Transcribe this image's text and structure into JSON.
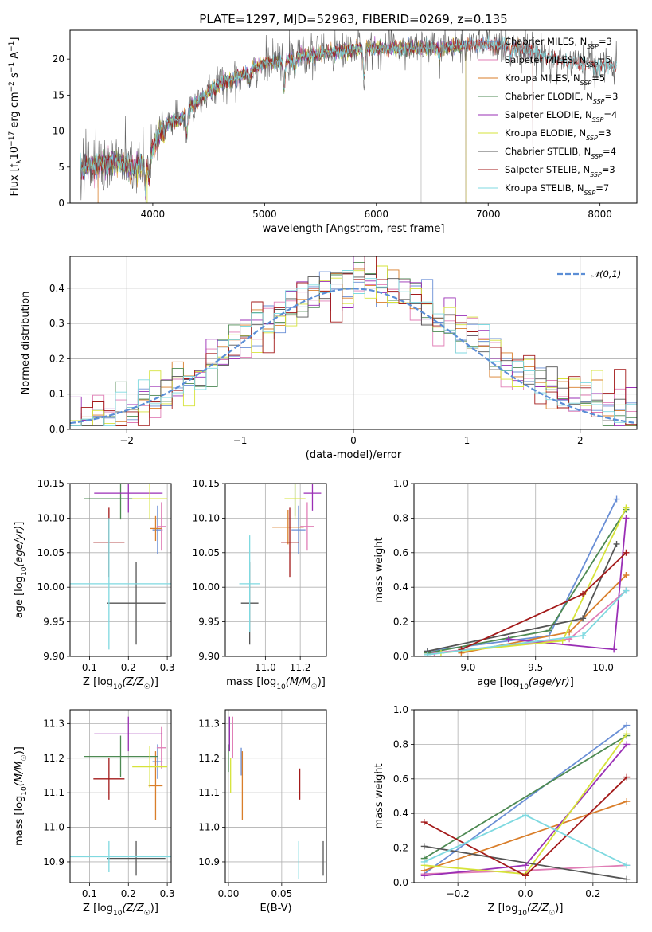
{
  "figure": {
    "title": "PLATE=1297, MJD=52963, FIBERID=0269, z=0.135"
  },
  "chart_data": [
    {
      "id": "spectrum",
      "type": "line",
      "xlabel": "wavelength [Angstrom, rest frame]",
      "ylabel": "Flux [f_λ 10^-17 erg cm^-2 s^-1 A^-1]",
      "xlim": [
        3260,
        8330
      ],
      "ylim": [
        0,
        24
      ],
      "xticks": [
        4000,
        5000,
        6000,
        7000,
        8000
      ],
      "yticks": [
        0,
        5,
        10,
        15,
        20
      ],
      "legend_position": "top-right",
      "continuum_nodes": [
        [
          3350,
          4.6
        ],
        [
          3500,
          5.3
        ],
        [
          3700,
          5.8
        ],
        [
          3800,
          4.8
        ],
        [
          3950,
          5.5
        ],
        [
          4000,
          7.5
        ],
        [
          4100,
          11.0
        ],
        [
          4250,
          11.6
        ],
        [
          4350,
          13.5
        ],
        [
          4600,
          16.5
        ],
        [
          4850,
          18.2
        ],
        [
          5000,
          19.5
        ],
        [
          5150,
          19.7
        ],
        [
          5300,
          20.3
        ],
        [
          5600,
          21.0
        ],
        [
          5900,
          21.5
        ],
        [
          6200,
          21.5
        ],
        [
          6500,
          21.6
        ],
        [
          6900,
          22.0
        ],
        [
          7200,
          21.9
        ],
        [
          7600,
          20.0
        ],
        [
          7900,
          19.2
        ],
        [
          8150,
          19.0
        ]
      ],
      "absorption_lines": [
        [
          3934,
          3.5
        ],
        [
          3968,
          3.0
        ],
        [
          4102,
          2.0
        ],
        [
          4304,
          3.0
        ],
        [
          4861,
          1.5
        ],
        [
          5175,
          4.0
        ],
        [
          5270,
          1.5
        ],
        [
          5890,
          4.0
        ],
        [
          6563,
          1.5
        ],
        [
          7200,
          1.5
        ]
      ],
      "series": [
        {
          "name": "Chabrier MILES, N_SSP=3",
          "color": "#6a8fd6",
          "xmax": 7400
        },
        {
          "name": "Salpeter MILES, N_SSP=5",
          "color": "#e07eb6",
          "xmax": 7400
        },
        {
          "name": "Kroupa MILES, N_SSP=5",
          "color": "#d97e2a",
          "xmax": 7400
        },
        {
          "name": "Chabrier ELODIE, N_SSP=3",
          "color": "#4e8a53",
          "xmax": 6800
        },
        {
          "name": "Salpeter ELODIE, N_SSP=4",
          "color": "#9a2fb5",
          "xmax": 6800
        },
        {
          "name": "Kroupa ELODIE, N_SSP=3",
          "color": "#d6e33a",
          "xmax": 6800
        },
        {
          "name": "Chabrier STELIB, N_SSP=4",
          "color": "#555555",
          "xmax": 8150
        },
        {
          "name": "Salpeter STELIB, N_SSP=3",
          "color": "#a31a1a",
          "xmax": 8150
        },
        {
          "name": "Kroupa STELIB, N_SSP=7",
          "color": "#7fd9e0",
          "xmax": 8150
        }
      ]
    },
    {
      "id": "residuals",
      "type": "step",
      "xlabel": "(data-model)/error",
      "ylabel": "Normed distribution",
      "xlim": [
        -2.5,
        2.5
      ],
      "ylim": [
        0,
        0.49
      ],
      "xticks": [
        -2,
        -1,
        0,
        1,
        2
      ],
      "yticks": [
        0.0,
        0.1,
        0.2,
        0.3,
        0.4
      ],
      "bin_width": 0.1,
      "gaussian": {
        "name": "𝒩(0,1)",
        "mean": 0,
        "sigma": 1,
        "color": "#5b8ed6"
      },
      "legend_position": "top-right",
      "grid": true
    },
    {
      "id": "age-vs-Z",
      "type": "errorbar",
      "xlabel": "Z [log10(Z/Z☉)]",
      "ylabel": "age  [log10(age/yr)]",
      "xlim": [
        0.05,
        0.31
      ],
      "ylim": [
        9.9,
        10.15
      ],
      "xticks": [
        0.1,
        0.2,
        0.3
      ],
      "yticks": [
        9.9,
        9.95,
        10.0,
        10.05,
        10.1,
        10.15
      ],
      "points": [
        {
          "color": "#6a8fd6",
          "x": 0.275,
          "xerr": 0.013,
          "y": 10.083,
          "yerr": 0.035
        },
        {
          "color": "#e07eb6",
          "x": 0.285,
          "xerr": 0.012,
          "y": 10.088,
          "yerr": 0.035
        },
        {
          "color": "#d97e2a",
          "x": 0.27,
          "xerr": 0.015,
          "y": 10.085,
          "yerr": 0.018
        },
        {
          "color": "#4e8a53",
          "x": 0.18,
          "xerr": 0.095,
          "y": 10.128,
          "yerr": 0.03
        },
        {
          "color": "#9a2fb5",
          "x": 0.2,
          "xerr": 0.088,
          "y": 10.136,
          "yerr": 0.028
        },
        {
          "color": "#d6e33a",
          "x": 0.255,
          "xerr": 0.045,
          "y": 10.128,
          "yerr": 0.03
        },
        {
          "color": "#555555",
          "x": 0.22,
          "xerr": 0.075,
          "y": 9.977,
          "yerr": 0.06
        },
        {
          "color": "#a31a1a",
          "x": 0.15,
          "xerr": 0.04,
          "y": 10.065,
          "yerr": 0.05
        },
        {
          "color": "#7fd9e0",
          "x": 0.15,
          "xerr": 0.17,
          "y": 10.005,
          "yerr": 0.095
        }
      ]
    },
    {
      "id": "age-vs-mass",
      "type": "errorbar",
      "xlabel": "mass [log10(M/M☉)]",
      "ylabel": "",
      "xlim": [
        10.77,
        11.35
      ],
      "ylim": [
        9.9,
        10.15
      ],
      "xticks": [
        11.0,
        11.2
      ],
      "yticks": [
        9.9,
        9.95,
        10.0,
        10.05,
        10.1,
        10.15
      ],
      "points": [
        {
          "color": "#6a8fd6",
          "x": 11.19,
          "xerr": 0.04,
          "y": 10.083,
          "yerr": 0.035
        },
        {
          "color": "#e07eb6",
          "x": 11.24,
          "xerr": 0.04,
          "y": 10.088,
          "yerr": 0.035
        },
        {
          "color": "#d97e2a",
          "x": 11.13,
          "xerr": 0.09,
          "y": 10.087,
          "yerr": 0.025
        },
        {
          "color": "#4e8a53",
          "x": 11.17,
          "xerr": 0.04,
          "y": 10.128,
          "yerr": 0.025
        },
        {
          "color": "#9a2fb5",
          "x": 11.27,
          "xerr": 0.05,
          "y": 10.136,
          "yerr": 0.025
        },
        {
          "color": "#d6e33a",
          "x": 11.17,
          "xerr": 0.06,
          "y": 10.128,
          "yerr": 0.03
        },
        {
          "color": "#555555",
          "x": 10.91,
          "xerr": 0.05,
          "y": 9.977,
          "yerr": 0.06
        },
        {
          "color": "#a31a1a",
          "x": 11.14,
          "xerr": 0.05,
          "y": 10.065,
          "yerr": 0.05
        },
        {
          "color": "#7fd9e0",
          "x": 10.91,
          "xerr": 0.06,
          "y": 10.005,
          "yerr": 0.07
        }
      ]
    },
    {
      "id": "weight-vs-age",
      "type": "line",
      "xlabel": "age  [log10(age/yr)]",
      "ylabel": "mass weight",
      "xlim": [
        8.6,
        10.25
      ],
      "ylim": [
        0,
        1
      ],
      "xticks": [
        9.0,
        9.5,
        10.0
      ],
      "yticks": [
        0.0,
        0.2,
        0.4,
        0.6,
        0.8,
        1.0
      ],
      "grid": true,
      "series": [
        {
          "color": "#6a8fd6",
          "x": [
            8.7,
            9.6,
            10.1
          ],
          "y": [
            0.03,
            0.12,
            0.91
          ]
        },
        {
          "color": "#e07eb6",
          "x": [
            8.75,
            9.75,
            10.17
          ],
          "y": [
            0.02,
            0.1,
            0.38
          ]
        },
        {
          "color": "#d97e2a",
          "x": [
            8.95,
            9.75,
            10.17
          ],
          "y": [
            0.02,
            0.14,
            0.47
          ]
        },
        {
          "color": "#4e8a53",
          "x": [
            8.7,
            9.6,
            10.17
          ],
          "y": [
            0.02,
            0.15,
            0.85
          ]
        },
        {
          "color": "#9a2fb5",
          "x": [
            9.3,
            10.08,
            10.17
          ],
          "y": [
            0.1,
            0.04,
            0.8
          ]
        },
        {
          "color": "#d6e33a",
          "x": [
            8.8,
            9.7,
            10.17
          ],
          "y": [
            0.02,
            0.09,
            0.86
          ]
        },
        {
          "color": "#555555",
          "x": [
            8.7,
            9.85,
            10.1
          ],
          "y": [
            0.03,
            0.22,
            0.65
          ]
        },
        {
          "color": "#a31a1a",
          "x": [
            8.95,
            9.85,
            10.17
          ],
          "y": [
            0.04,
            0.36,
            0.6
          ]
        },
        {
          "color": "#7fd9e0",
          "x": [
            8.7,
            9.85,
            10.17
          ],
          "y": [
            0.01,
            0.12,
            0.38
          ]
        }
      ]
    },
    {
      "id": "mass-vs-Z",
      "type": "errorbar",
      "xlabel": "Z [log10(Z/Z☉)]",
      "ylabel": "mass [log10(M/M☉)]",
      "xlim": [
        0.05,
        0.31
      ],
      "ylim": [
        10.84,
        11.34
      ],
      "xticks": [
        0.1,
        0.2,
        0.3
      ],
      "yticks": [
        10.9,
        11.0,
        11.1,
        11.2,
        11.3
      ],
      "points": [
        {
          "color": "#6a8fd6",
          "x": 0.275,
          "xerr": 0.013,
          "y": 11.19,
          "yerr": 0.05
        },
        {
          "color": "#e07eb6",
          "x": 0.285,
          "xerr": 0.012,
          "y": 11.23,
          "yerr": 0.06
        },
        {
          "color": "#d97e2a",
          "x": 0.27,
          "xerr": 0.018,
          "y": 11.12,
          "yerr": 0.1
        },
        {
          "color": "#4e8a53",
          "x": 0.18,
          "xerr": 0.095,
          "y": 11.205,
          "yerr": 0.06
        },
        {
          "color": "#9a2fb5",
          "x": 0.2,
          "xerr": 0.088,
          "y": 11.27,
          "yerr": 0.05
        },
        {
          "color": "#d6e33a",
          "x": 0.255,
          "xerr": 0.045,
          "y": 11.175,
          "yerr": 0.06
        },
        {
          "color": "#555555",
          "x": 0.22,
          "xerr": 0.075,
          "y": 10.91,
          "yerr": 0.05
        },
        {
          "color": "#a31a1a",
          "x": 0.15,
          "xerr": 0.04,
          "y": 11.14,
          "yerr": 0.06
        },
        {
          "color": "#7fd9e0",
          "x": 0.15,
          "xerr": 0.17,
          "y": 10.915,
          "yerr": 0.045
        }
      ]
    },
    {
      "id": "mass-vs-EBV",
      "type": "errorbar",
      "xlabel": "E(B-V)",
      "ylabel": "",
      "xlim": [
        -0.003,
        0.092
      ],
      "ylim": [
        10.84,
        11.34
      ],
      "xticks": [
        0.0,
        0.05
      ],
      "yticks": [
        10.9,
        11.0,
        11.1,
        11.2,
        11.3
      ],
      "points": [
        {
          "color": "#6a8fd6",
          "x": 0.012,
          "xerr": 0,
          "y": 11.19,
          "yerr": 0.04
        },
        {
          "color": "#e07eb6",
          "x": 0.004,
          "xerr": 0,
          "y": 11.26,
          "yerr": 0.06
        },
        {
          "color": "#d97e2a",
          "x": 0.013,
          "xerr": 0,
          "y": 11.12,
          "yerr": 0.1
        },
        {
          "color": "#4e8a53",
          "x": 0.0,
          "xerr": 0,
          "y": 11.2,
          "yerr": 0.04
        },
        {
          "color": "#9a2fb5",
          "x": 0.001,
          "xerr": 0,
          "y": 11.27,
          "yerr": 0.05
        },
        {
          "color": "#d6e33a",
          "x": 0.002,
          "xerr": 0,
          "y": 11.15,
          "yerr": 0.05
        },
        {
          "color": "#555555",
          "x": 0.089,
          "xerr": 0,
          "y": 10.91,
          "yerr": 0.05
        },
        {
          "color": "#a31a1a",
          "x": 0.067,
          "xerr": 0,
          "y": 11.125,
          "yerr": 0.045
        },
        {
          "color": "#7fd9e0",
          "x": 0.066,
          "xerr": 0,
          "y": 10.905,
          "yerr": 0.055
        }
      ]
    },
    {
      "id": "weight-vs-Z",
      "type": "line",
      "xlabel": "Z [log10(Z/Z☉)]",
      "ylabel": "mass weight",
      "xlim": [
        -0.33,
        0.33
      ],
      "ylim": [
        0,
        1
      ],
      "xticks": [
        -0.2,
        0.0,
        0.2
      ],
      "yticks": [
        0.0,
        0.2,
        0.4,
        0.6,
        0.8,
        1.0
      ],
      "grid": true,
      "series": [
        {
          "color": "#6a8fd6",
          "x": [
            -0.3,
            0.3
          ],
          "y": [
            0.05,
            0.91
          ]
        },
        {
          "color": "#e07eb6",
          "x": [
            -0.3,
            0.0,
            0.3
          ],
          "y": [
            0.05,
            0.07,
            0.1
          ]
        },
        {
          "color": "#d97e2a",
          "x": [
            -0.3,
            0.3
          ],
          "y": [
            0.07,
            0.47
          ]
        },
        {
          "color": "#4e8a53",
          "x": [
            -0.3,
            0.3
          ],
          "y": [
            0.14,
            0.85
          ]
        },
        {
          "color": "#9a2fb5",
          "x": [
            -0.3,
            0.0,
            0.3
          ],
          "y": [
            0.04,
            0.1,
            0.8
          ]
        },
        {
          "color": "#d6e33a",
          "x": [
            -0.3,
            0.0,
            0.3
          ],
          "y": [
            0.1,
            0.05,
            0.86
          ]
        },
        {
          "color": "#555555",
          "x": [
            -0.3,
            0.3
          ],
          "y": [
            0.21,
            0.02
          ]
        },
        {
          "color": "#a31a1a",
          "x": [
            -0.3,
            0.0,
            0.3
          ],
          "y": [
            0.35,
            0.04,
            0.61
          ]
        },
        {
          "color": "#7fd9e0",
          "x": [
            -0.3,
            0.0,
            0.3
          ],
          "y": [
            0.12,
            0.39,
            0.1
          ]
        }
      ]
    }
  ]
}
